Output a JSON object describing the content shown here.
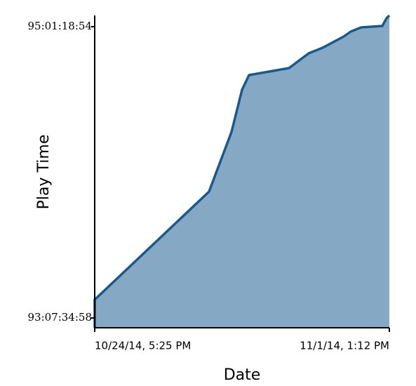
{
  "chart_data": {
    "type": "area",
    "x_label": "Date",
    "y_label": "Play Time",
    "x": [
      1414171500,
      1414171500,
      1414433860,
      1414485366,
      1414509510,
      1414525605,
      1414617351,
      1414662419,
      1414694610,
      1414742897,
      1414758993,
      1414783137,
      1414831424,
      1414841081,
      1414847520
    ],
    "series": [
      {
        "color": "#1a5a8a",
        "values": [
          8057430,
          8071910,
          8127661,
          8158432,
          8180153,
          8187755,
          8191375,
          8198978,
          8201874,
          8207666,
          8210200,
          8212372,
          8213096,
          8217078,
          8218526
        ]
      }
    ],
    "fill_color": "#85a9c5",
    "xlim": [
      1414171500,
      1414847520
    ],
    "xticks": [
      {
        "value": 1414171500,
        "label": "10/24/14, 5:25 PM"
      },
      {
        "value": 1414847520,
        "label": "11/1/14, 1:12 PM"
      }
    ],
    "ylim": [
      8057430,
      8218526
    ],
    "yticks": [
      {
        "value": 8062498,
        "label": "93:07:34:58"
      },
      {
        "value": 8212734,
        "label": "95:01:18:54"
      }
    ]
  }
}
